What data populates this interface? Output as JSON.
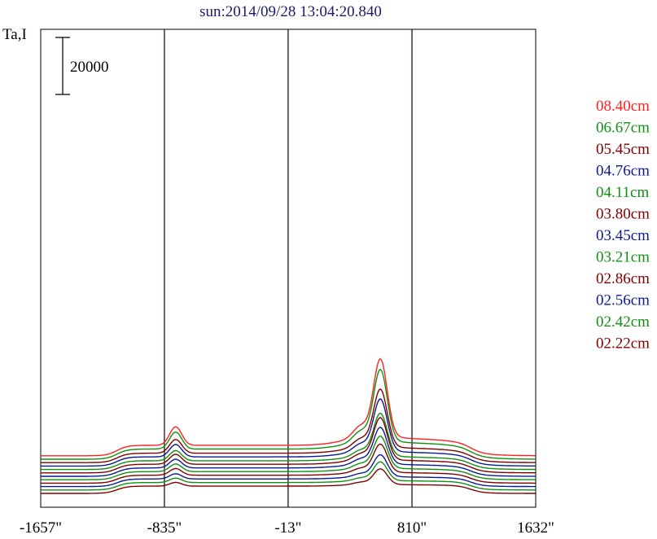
{
  "chart_data": {
    "type": "line",
    "title": "sun:2014/09/28 13:04:20.840",
    "ylabel": "Ta,I",
    "scale_bar_label": "20000",
    "scale_bar_value": 20000,
    "xlim": [
      -1657,
      1632
    ],
    "x_ticks": [
      {
        "value": -1657,
        "label": "-1657\""
      },
      {
        "value": -835,
        "label": "-835\""
      },
      {
        "value": -13,
        "label": "-13\""
      },
      {
        "value": 810,
        "label": "810\""
      },
      {
        "value": 1632,
        "label": "1632\""
      }
    ],
    "vlines": [
      -835,
      -13,
      810
    ],
    "series": [
      {
        "name": "08.40cm",
        "color": "#ff2020",
        "offset": 12000,
        "amp": 1.0
      },
      {
        "name": "06.67cm",
        "color": "#109010",
        "offset": 10800,
        "amp": 0.92
      },
      {
        "name": "05.45cm",
        "color": "#800000",
        "offset": 9600,
        "amp": 0.74
      },
      {
        "name": "04.76cm",
        "color": "#0a1a90",
        "offset": 8400,
        "amp": 0.67
      },
      {
        "name": "04.11cm",
        "color": "#109010",
        "offset": 7200,
        "amp": 0.55
      },
      {
        "name": "03.80cm",
        "color": "#800000",
        "offset": 6000,
        "amp": 0.54
      },
      {
        "name": "03.45cm",
        "color": "#0a1a90",
        "offset": 4800,
        "amp": 0.47
      },
      {
        "name": "03.21cm",
        "color": "#109010",
        "offset": 3600,
        "amp": 0.41
      },
      {
        "name": "02.86cm",
        "color": "#800000",
        "offset": 2400,
        "amp": 0.36
      },
      {
        "name": "02.56cm",
        "color": "#0a1a90",
        "offset": 1200,
        "amp": 0.28
      },
      {
        "name": "02.42cm",
        "color": "#109010",
        "offset": 0,
        "amp": 0.24
      },
      {
        "name": "02.22cm",
        "color": "#800000",
        "offset": -1200,
        "amp": 0.2
      }
    ],
    "grid": false,
    "legend": "right"
  }
}
